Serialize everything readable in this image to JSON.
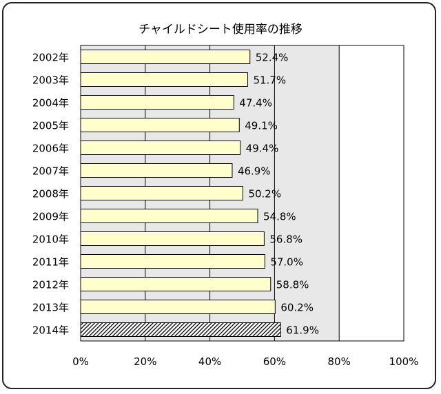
{
  "chart_data": {
    "type": "bar",
    "orientation": "horizontal",
    "title": "チャイルドシート使用率の推移",
    "categories": [
      "2002年",
      "2003年",
      "2004年",
      "2005年",
      "2006年",
      "2007年",
      "2008年",
      "2009年",
      "2010年",
      "2011年",
      "2012年",
      "2013年",
      "2014年"
    ],
    "values": [
      52.4,
      51.7,
      47.4,
      49.1,
      49.4,
      46.9,
      50.2,
      54.8,
      56.8,
      57.0,
      58.8,
      60.2,
      61.9
    ],
    "value_labels": [
      "52.4%",
      "51.7%",
      "47.4%",
      "49.1%",
      "49.4%",
      "46.9%",
      "50.2%",
      "54.8%",
      "56.8%",
      "57.0%",
      "58.8%",
      "60.2%",
      "61.9%"
    ],
    "xlim": [
      0,
      100
    ],
    "x_ticks": [
      "0%",
      "20%",
      "40%",
      "60%",
      "80%",
      "100%"
    ],
    "x_tick_values": [
      0,
      20,
      40,
      60,
      80,
      100
    ],
    "highlight_index": 12,
    "colors": {
      "bar_fill": "#ffffcc",
      "highlight_fill": "hatched-black",
      "plot_bg_left": "#e8e8e8",
      "plot_bg_right": "#ffffff",
      "border": "#000000"
    },
    "grid": true
  }
}
